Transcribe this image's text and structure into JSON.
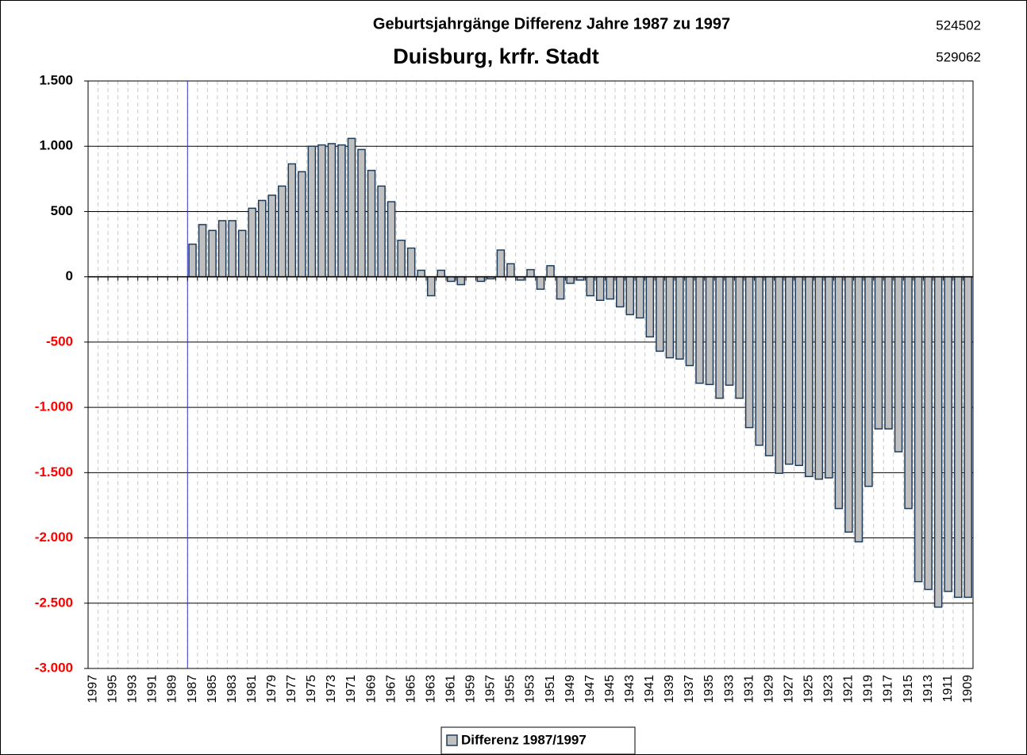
{
  "chart_data": {
    "type": "bar",
    "title": "Geburtsjahrgänge Differenz Jahre 1987 zu 1997",
    "subtitle": "Duisburg, krfr. Stadt",
    "annotations": [
      "524502",
      "529062"
    ],
    "categories": [
      "1997",
      null,
      "1995",
      null,
      "1993",
      null,
      "1991",
      null,
      "1989",
      null,
      "1987",
      null,
      "1985",
      null,
      "1983",
      null,
      "1981",
      null,
      "1979",
      null,
      "1977",
      null,
      "1975",
      null,
      "1973",
      null,
      "1971",
      null,
      "1969",
      null,
      "1967",
      null,
      "1965",
      null,
      "1963",
      null,
      "1961",
      null,
      "1959",
      null,
      "1957",
      null,
      "1955",
      null,
      "1953",
      null,
      "1951",
      null,
      "1949",
      null,
      "1947",
      null,
      "1945",
      null,
      "1943",
      null,
      "1941",
      null,
      "1939",
      null,
      "1937",
      null,
      "1935",
      null,
      "1933",
      null,
      "1931",
      null,
      "1929",
      null,
      "1927",
      null,
      "1925",
      null,
      "1923",
      null,
      "1921",
      null,
      "1919",
      null,
      "1917",
      null,
      "1915",
      null,
      "1913",
      null,
      "1911",
      null,
      "1909"
    ],
    "series": [
      {
        "name": "Differenz 1987/1997",
        "color": "#c0c0c0",
        "values": [
          null,
          null,
          null,
          null,
          null,
          null,
          null,
          null,
          null,
          null,
          250,
          400,
          355,
          430,
          430,
          355,
          525,
          585,
          625,
          695,
          865,
          805,
          1000,
          1010,
          1020,
          1010,
          1060,
          975,
          815,
          695,
          575,
          280,
          220,
          50,
          -145,
          50,
          -35,
          -60,
          0,
          -35,
          -15,
          205,
          100,
          -25,
          55,
          -95,
          85,
          -170,
          -50,
          -25,
          -145,
          -180,
          -170,
          -230,
          -290,
          -315,
          -460,
          -570,
          -620,
          -630,
          -680,
          -815,
          -825,
          -930,
          -830,
          -930,
          -1155,
          -1290,
          -1370,
          -1505,
          -1435,
          -1445,
          -1530,
          -1550,
          -1540,
          -1775,
          -1955,
          -2030,
          -1605,
          -1165,
          -1165,
          -1340,
          -1775,
          -2335,
          -2395,
          -2530,
          -2410,
          -2455,
          -2455
        ]
      }
    ],
    "ylim": [
      -3000,
      1500
    ],
    "yticks": [
      {
        "value": -3000,
        "label": "-3.000"
      },
      {
        "value": -2500,
        "label": "-2.500"
      },
      {
        "value": -2000,
        "label": "-2.000"
      },
      {
        "value": -1500,
        "label": "-1.500"
      },
      {
        "value": -1000,
        "label": "-1.000"
      },
      {
        "value": -500,
        "label": "-500"
      },
      0,
      {
        "value": 500,
        "label": "500"
      },
      {
        "value": 1000,
        "label": "1.000"
      },
      {
        "value": 1500,
        "label": "1.500"
      }
    ],
    "grid": true,
    "legend": "bottom"
  }
}
